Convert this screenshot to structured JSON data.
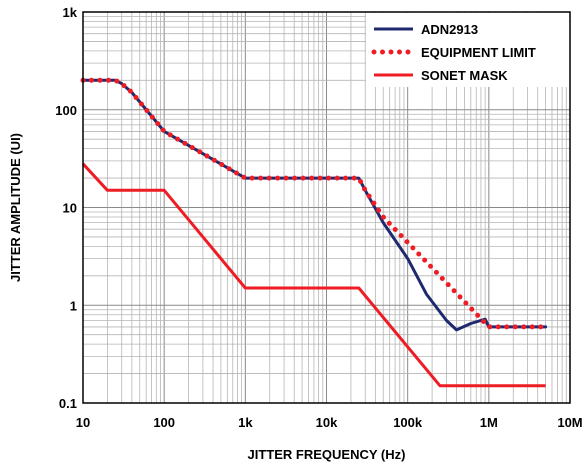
{
  "chart_data": {
    "type": "line",
    "xlabel": "JITTER FREQUENCY (Hz)",
    "ylabel": "JITTER AMPLITUDE (UI)",
    "x_scale": "log",
    "y_scale": "log",
    "xlim": [
      10,
      10000000
    ],
    "ylim": [
      0.1,
      1000
    ],
    "grid": true,
    "legend_position": "top-right",
    "x_tick_values": [
      10,
      100,
      1000,
      10000,
      100000,
      1000000,
      10000000
    ],
    "x_tick_labels": [
      "10",
      "100",
      "1k",
      "10k",
      "100k",
      "1M",
      "10M"
    ],
    "y_tick_values": [
      0.1,
      1,
      10,
      100,
      1000
    ],
    "y_tick_labels": [
      "0.1",
      "1",
      "10",
      "100",
      "1k"
    ],
    "series": [
      {
        "name": "ADN2913",
        "color": "#1f2a6e",
        "style": "solid",
        "x": [
          10,
          25,
          30,
          40,
          100,
          1000,
          25000,
          30000,
          50000,
          100000,
          170000,
          300000,
          400000,
          600000,
          900000,
          1000000,
          5000000
        ],
        "y": [
          200,
          200,
          185,
          150,
          60,
          20,
          20,
          15,
          7,
          3,
          1.3,
          0.7,
          0.56,
          0.65,
          0.72,
          0.6,
          0.6
        ]
      },
      {
        "name": "EQUIPMENT LIMIT",
        "color": "#ee1c25",
        "style": "dotted",
        "x": [
          10,
          25,
          30,
          40,
          100,
          1000,
          25000,
          30000,
          50000,
          1000000,
          5000000
        ],
        "y": [
          200,
          200,
          185,
          150,
          60,
          20,
          20,
          15,
          8,
          0.6,
          0.6
        ]
      },
      {
        "name": "SONET MASK",
        "color": "#ee1c25",
        "style": "solid",
        "x": [
          10,
          20,
          100,
          1000,
          25000,
          250000,
          5000000
        ],
        "y": [
          28,
          15,
          15,
          1.5,
          1.5,
          0.15,
          0.15
        ]
      }
    ]
  }
}
